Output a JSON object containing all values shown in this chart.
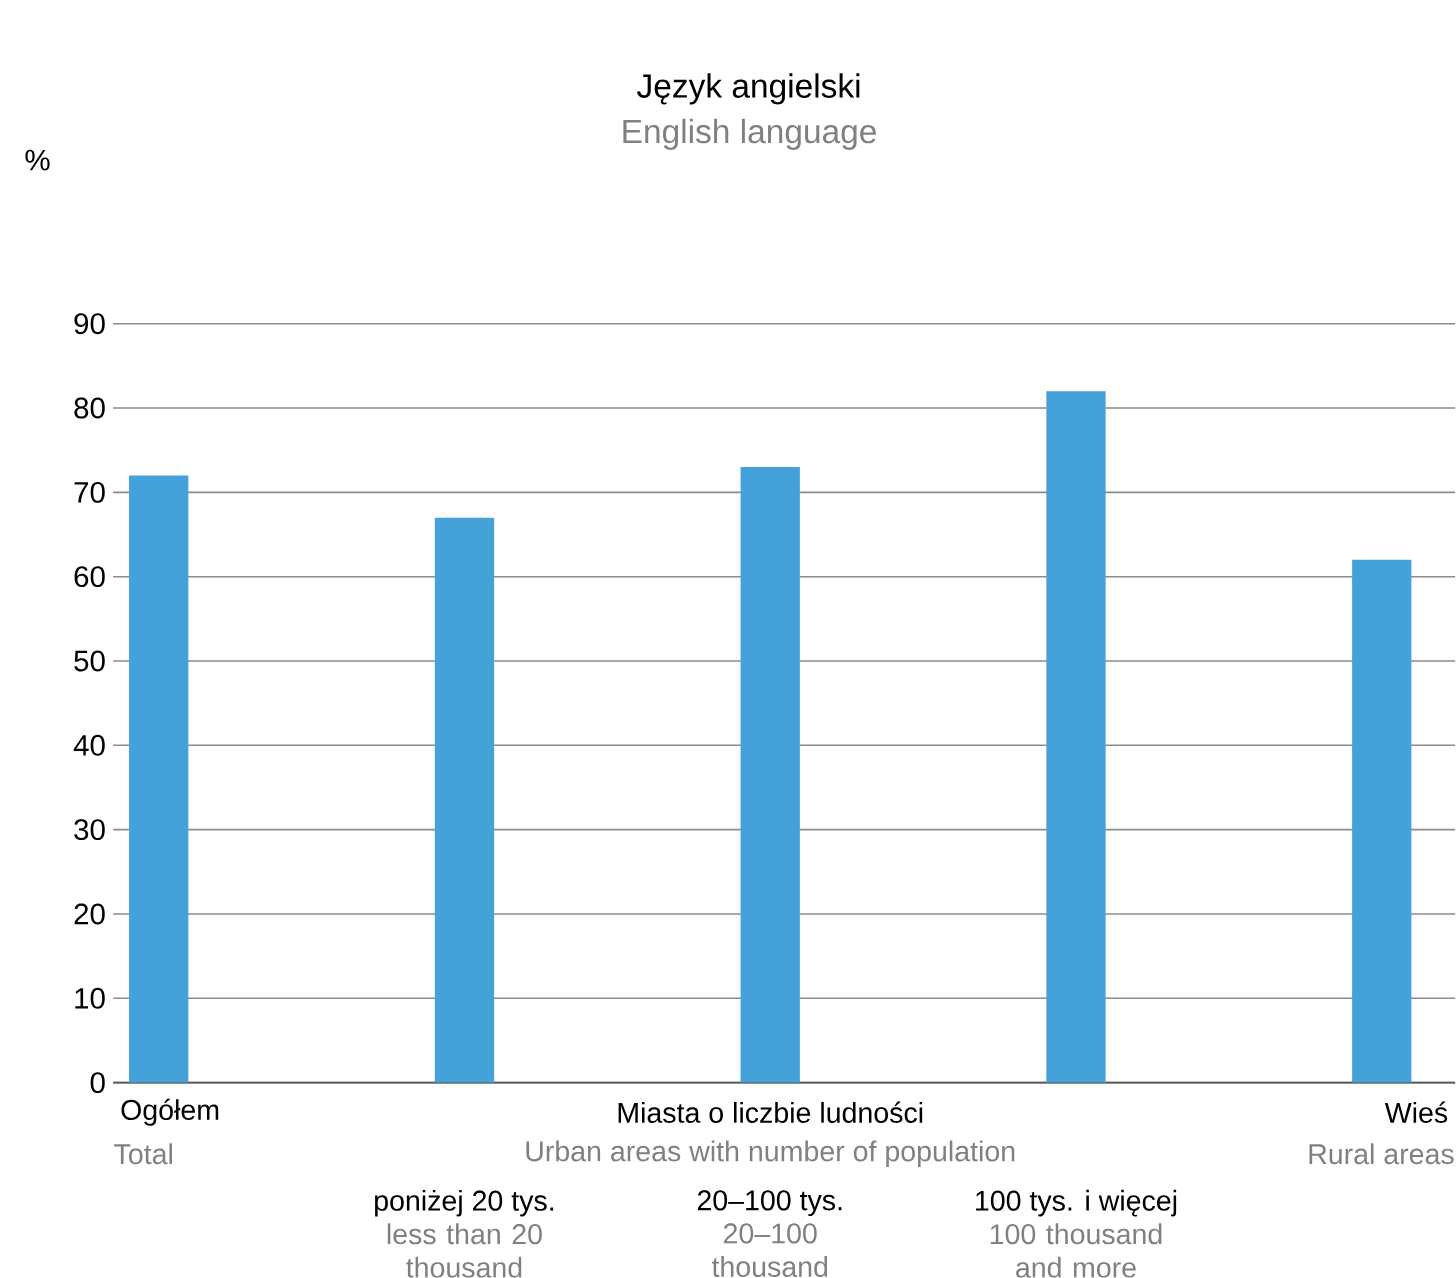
{
  "chart_data": {
    "type": "bar",
    "title": "Język angielski",
    "subtitle": "English language",
    "ylabel": "%",
    "categories": [
      "Ogółem",
      "poniżej 20 tys.",
      "20–100 tys.",
      "100 tys. i więcej",
      "Wieś"
    ],
    "values": [
      72,
      67,
      73,
      82,
      62
    ],
    "color": "#45a1da",
    "ylim": [
      0,
      90
    ],
    "yticks": [
      0,
      10,
      20,
      30,
      40,
      50,
      60,
      70,
      80,
      90
    ],
    "grid": "y",
    "annotations": [
      "Total",
      "less than 20 thousand",
      "20–100 thousand",
      "100 thousand and more",
      "Rural areas",
      "Miasta o liczbie ludności",
      "Urban areas with number of population"
    ]
  }
}
